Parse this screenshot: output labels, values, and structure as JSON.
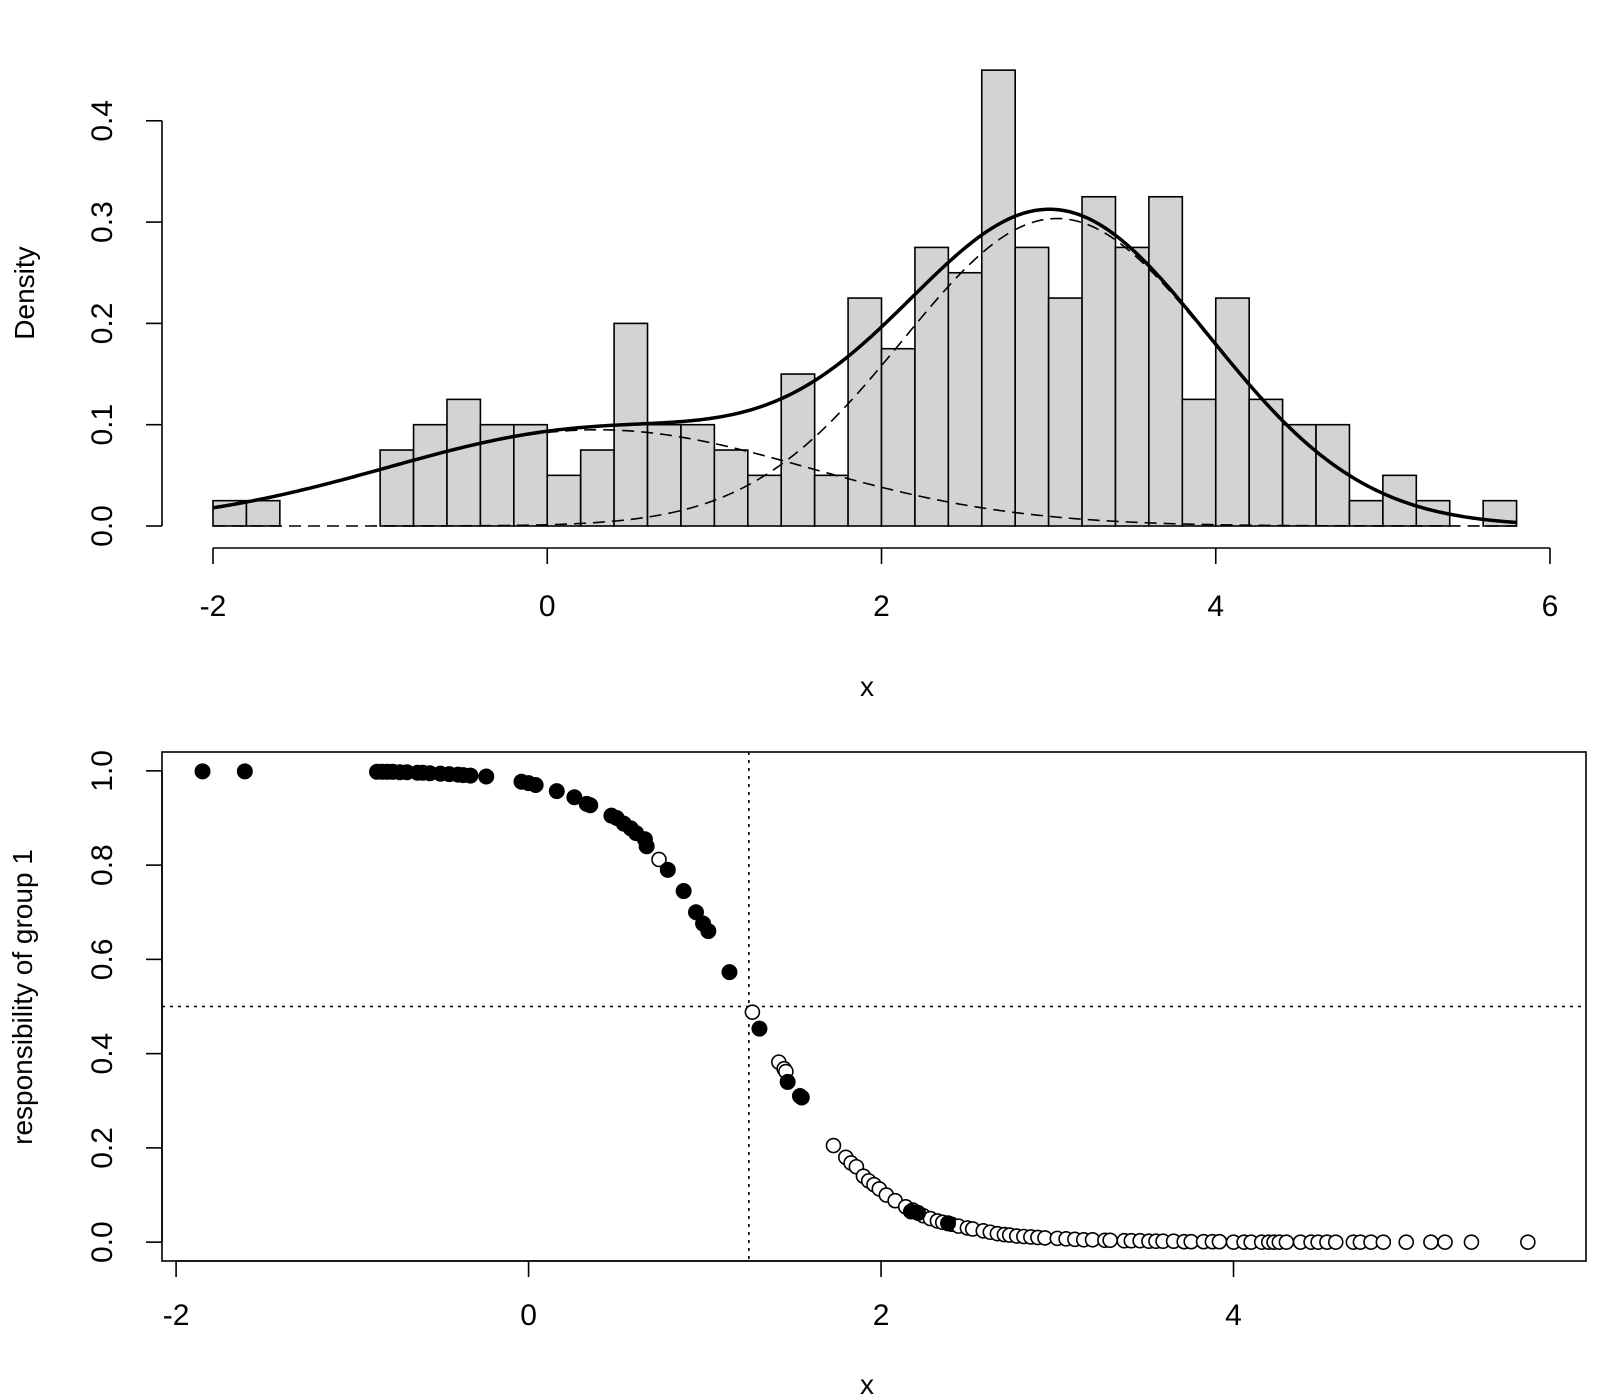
{
  "chart_data": [
    {
      "type": "bar",
      "subtype": "histogram",
      "xlabel": "x",
      "ylabel": "Density",
      "xlim": [
        -2,
        6
      ],
      "ylim": [
        0,
        0.4
      ],
      "x_ticks": [
        "-2",
        "0",
        "2",
        "4",
        "6"
      ],
      "y_ticks": [
        "0.0",
        "0.1",
        "0.2",
        "0.3",
        "0.4"
      ],
      "bin_width": 0.2,
      "bins": [
        {
          "x0": -2.0,
          "density": 0.025
        },
        {
          "x0": -1.8,
          "density": 0.025
        },
        {
          "x0": -1.0,
          "density": 0.075
        },
        {
          "x0": -0.8,
          "density": 0.1
        },
        {
          "x0": -0.6,
          "density": 0.125
        },
        {
          "x0": -0.4,
          "density": 0.1
        },
        {
          "x0": -0.2,
          "density": 0.1
        },
        {
          "x0": 0.0,
          "density": 0.05
        },
        {
          "x0": 0.2,
          "density": 0.075
        },
        {
          "x0": 0.4,
          "density": 0.2
        },
        {
          "x0": 0.6,
          "density": 0.1
        },
        {
          "x0": 0.8,
          "density": 0.1
        },
        {
          "x0": 1.0,
          "density": 0.075
        },
        {
          "x0": 1.2,
          "density": 0.05
        },
        {
          "x0": 1.4,
          "density": 0.15
        },
        {
          "x0": 1.6,
          "density": 0.05
        },
        {
          "x0": 1.8,
          "density": 0.225
        },
        {
          "x0": 2.0,
          "density": 0.175
        },
        {
          "x0": 2.2,
          "density": 0.275
        },
        {
          "x0": 2.4,
          "density": 0.25
        },
        {
          "x0": 2.6,
          "density": 0.45
        },
        {
          "x0": 2.8,
          "density": 0.275
        },
        {
          "x0": 3.0,
          "density": 0.225
        },
        {
          "x0": 3.2,
          "density": 0.325
        },
        {
          "x0": 3.4,
          "density": 0.275
        },
        {
          "x0": 3.6,
          "density": 0.325
        },
        {
          "x0": 3.8,
          "density": 0.125
        },
        {
          "x0": 4.0,
          "density": 0.225
        },
        {
          "x0": 4.2,
          "density": 0.125
        },
        {
          "x0": 4.4,
          "density": 0.1
        },
        {
          "x0": 4.6,
          "density": 0.1
        },
        {
          "x0": 4.8,
          "density": 0.025
        },
        {
          "x0": 5.0,
          "density": 0.05
        },
        {
          "x0": 5.2,
          "density": 0.025
        },
        {
          "x0": 5.6,
          "density": 0.025
        }
      ],
      "components": [
        {
          "weight": 0.3,
          "mean": 0.3,
          "sd": 1.26
        },
        {
          "weight": 0.7,
          "mean": 3.05,
          "sd": 0.92
        }
      ],
      "bar_color": "#d3d3d3",
      "grid": false
    },
    {
      "type": "scatter",
      "xlabel": "x",
      "ylabel": "responsibility of group 1",
      "xlim": [
        -2,
        6
      ],
      "ylim": [
        0,
        1
      ],
      "x_ticks": [
        "-2",
        "0",
        "2",
        "4"
      ],
      "y_ticks": [
        "0.0",
        "0.2",
        "0.4",
        "0.6",
        "0.8",
        "1.0"
      ],
      "vline": 1.25,
      "hline": 0.5,
      "grid": false,
      "filled_points": [
        [
          -1.85,
          0.999
        ],
        [
          -1.61,
          0.999
        ],
        [
          -0.86,
          0.998
        ],
        [
          -0.83,
          0.998
        ],
        [
          -0.8,
          0.998
        ],
        [
          -0.77,
          0.998
        ],
        [
          -0.73,
          0.997
        ],
        [
          -0.69,
          0.997
        ],
        [
          -0.63,
          0.996
        ],
        [
          -0.6,
          0.996
        ],
        [
          -0.56,
          0.995
        ],
        [
          -0.5,
          0.994
        ],
        [
          -0.45,
          0.993
        ],
        [
          -0.4,
          0.992
        ],
        [
          -0.37,
          0.991
        ],
        [
          -0.33,
          0.99
        ],
        [
          -0.24,
          0.988
        ],
        [
          -0.04,
          0.977
        ],
        [
          0.0,
          0.974
        ],
        [
          0.04,
          0.97
        ],
        [
          0.16,
          0.957
        ],
        [
          0.26,
          0.944
        ],
        [
          0.33,
          0.93
        ],
        [
          0.35,
          0.927
        ],
        [
          0.47,
          0.905
        ],
        [
          0.5,
          0.9
        ],
        [
          0.54,
          0.888
        ],
        [
          0.58,
          0.878
        ],
        [
          0.61,
          0.868
        ],
        [
          0.66,
          0.855
        ],
        [
          0.67,
          0.84
        ],
        [
          0.79,
          0.79
        ],
        [
          0.88,
          0.745
        ],
        [
          0.95,
          0.7
        ],
        [
          0.99,
          0.676
        ],
        [
          1.02,
          0.66
        ],
        [
          1.14,
          0.573
        ],
        [
          1.31,
          0.453
        ],
        [
          1.47,
          0.34
        ],
        [
          1.54,
          0.31
        ],
        [
          1.55,
          0.307
        ],
        [
          2.17,
          0.065
        ],
        [
          2.21,
          0.062
        ],
        [
          2.38,
          0.04
        ]
      ],
      "open_points": [
        [
          0.74,
          0.812
        ],
        [
          1.27,
          0.488
        ],
        [
          1.42,
          0.382
        ],
        [
          1.45,
          0.368
        ],
        [
          1.46,
          0.362
        ],
        [
          1.73,
          0.205
        ],
        [
          1.8,
          0.18
        ],
        [
          1.83,
          0.168
        ],
        [
          1.86,
          0.16
        ],
        [
          1.9,
          0.14
        ],
        [
          1.93,
          0.13
        ],
        [
          1.96,
          0.122
        ],
        [
          1.99,
          0.113
        ],
        [
          2.03,
          0.1
        ],
        [
          2.08,
          0.088
        ],
        [
          2.14,
          0.075
        ],
        [
          2.18,
          0.068
        ],
        [
          2.24,
          0.056
        ],
        [
          2.28,
          0.05
        ],
        [
          2.32,
          0.045
        ],
        [
          2.35,
          0.042
        ],
        [
          2.4,
          0.038
        ],
        [
          2.44,
          0.034
        ],
        [
          2.49,
          0.03
        ],
        [
          2.52,
          0.028
        ],
        [
          2.58,
          0.024
        ],
        [
          2.62,
          0.021
        ],
        [
          2.66,
          0.018
        ],
        [
          2.7,
          0.016
        ],
        [
          2.73,
          0.015
        ],
        [
          2.77,
          0.013
        ],
        [
          2.81,
          0.012
        ],
        [
          2.85,
          0.011
        ],
        [
          2.89,
          0.01
        ],
        [
          2.93,
          0.009
        ],
        [
          3.0,
          0.008
        ],
        [
          3.05,
          0.007
        ],
        [
          3.1,
          0.006
        ],
        [
          3.15,
          0.005
        ],
        [
          3.2,
          0.005
        ],
        [
          3.27,
          0.004
        ],
        [
          3.3,
          0.004
        ],
        [
          3.38,
          0.003
        ],
        [
          3.42,
          0.003
        ],
        [
          3.47,
          0.003
        ],
        [
          3.52,
          0.002
        ],
        [
          3.56,
          0.002
        ],
        [
          3.6,
          0.002
        ],
        [
          3.66,
          0.002
        ],
        [
          3.72,
          0.001
        ],
        [
          3.76,
          0.001
        ],
        [
          3.83,
          0.001
        ],
        [
          3.88,
          0.001
        ],
        [
          3.92,
          0.001
        ],
        [
          4.0,
          0.0
        ],
        [
          4.06,
          0.0
        ],
        [
          4.1,
          0.0
        ],
        [
          4.16,
          0.0
        ],
        [
          4.2,
          0.0
        ],
        [
          4.23,
          0.0
        ],
        [
          4.26,
          0.0
        ],
        [
          4.3,
          0.0
        ],
        [
          4.38,
          0.0
        ],
        [
          4.44,
          0.0
        ],
        [
          4.48,
          0.0
        ],
        [
          4.53,
          0.0
        ],
        [
          4.58,
          0.0
        ],
        [
          4.68,
          0.0
        ],
        [
          4.72,
          0.0
        ],
        [
          4.78,
          0.0
        ],
        [
          4.85,
          0.0
        ],
        [
          4.98,
          0.0
        ],
        [
          5.12,
          0.0
        ],
        [
          5.2,
          0.0
        ],
        [
          5.35,
          0.0
        ],
        [
          5.67,
          0.0
        ]
      ]
    }
  ]
}
